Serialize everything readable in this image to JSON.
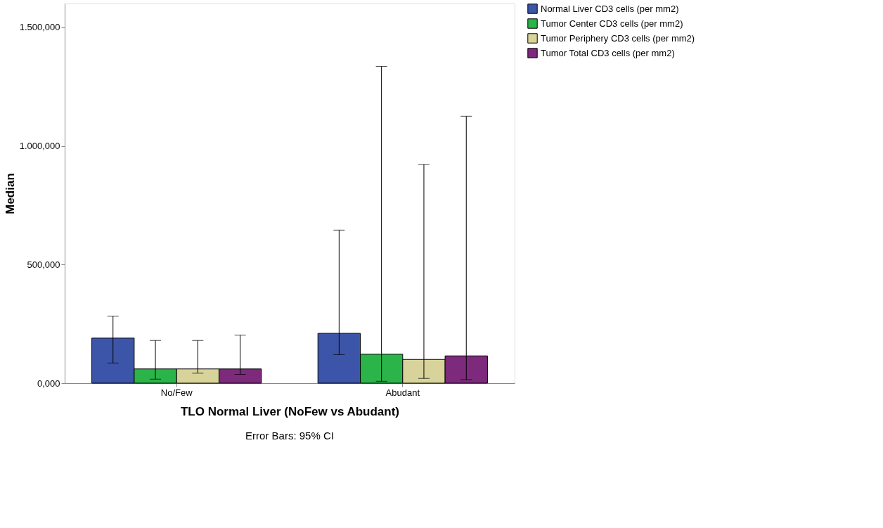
{
  "chart_data": {
    "type": "bar",
    "xlabel": "TLO Normal Liver (NoFew vs Abudant)",
    "ylabel": "Median",
    "categories": [
      "No/Few",
      "Abudant"
    ],
    "series": [
      {
        "name": "Normal Liver CD3 cells (per mm2)",
        "color": "#3d55a8",
        "values": [
          190,
          210
        ],
        "errors": [
          [
            85,
            282
          ],
          [
            120,
            645
          ]
        ]
      },
      {
        "name": "Tumor Center CD3 cells (per mm2)",
        "color": "#2bb44a",
        "values": [
          60,
          122
        ],
        "errors": [
          [
            17,
            180
          ],
          [
            8,
            1335
          ]
        ]
      },
      {
        "name": "Tumor Periphery CD3 cells (per mm2)",
        "color": "#d8d39a",
        "values": [
          60,
          100
        ],
        "errors": [
          [
            42,
            180
          ],
          [
            20,
            922
          ]
        ]
      },
      {
        "name": "Tumor Total CD3 cells (per mm2)",
        "color": "#7d2a7d",
        "values": [
          60,
          115
        ],
        "errors": [
          [
            37,
            202
          ],
          [
            15,
            1125
          ]
        ]
      }
    ],
    "ylim": [
      0,
      1600
    ],
    "yticks": [
      {
        "value": 0,
        "label": "0,000"
      },
      {
        "value": 500,
        "label": "500,000"
      },
      {
        "value": 1000,
        "label": "1.000,000"
      },
      {
        "value": 1500,
        "label": "1.500,000"
      }
    ],
    "grid": false,
    "legend": "top right",
    "annotations": [
      "Error Bars: 95% CI"
    ]
  }
}
